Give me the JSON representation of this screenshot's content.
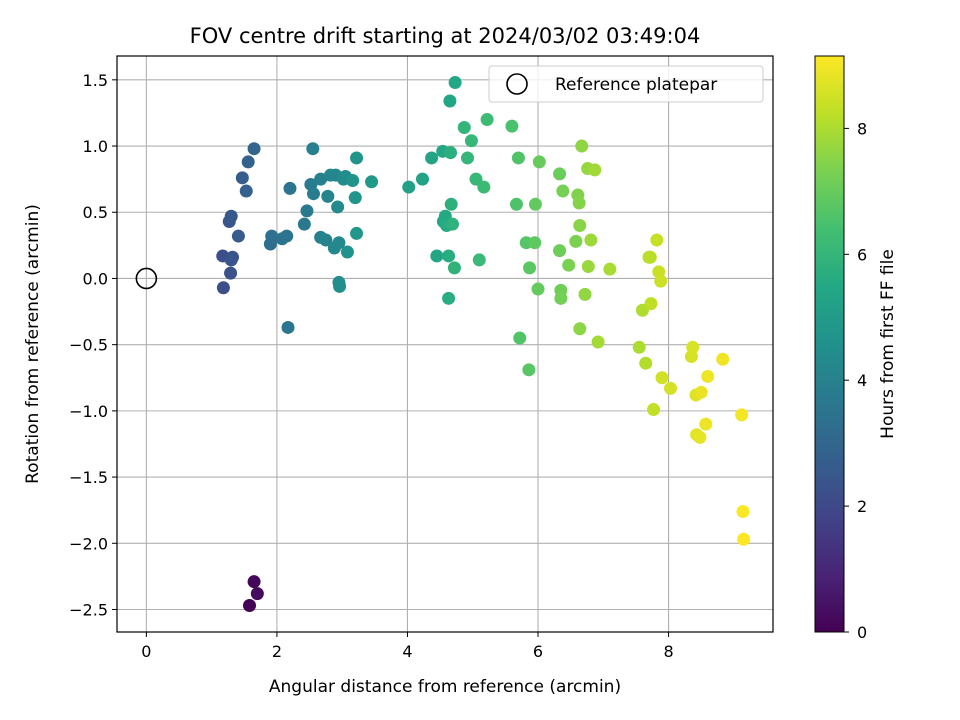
{
  "chart_data": {
    "type": "scatter",
    "title": "FOV centre drift starting at 2024/03/02 03:49:04",
    "xlabel": "Angular distance from reference (arcmin)",
    "ylabel": "Rotation from reference (arcmin)",
    "xlim": [
      -0.45,
      9.6
    ],
    "ylim": [
      -2.67,
      1.68
    ],
    "xticks": [
      0,
      2,
      4,
      6,
      8
    ],
    "yticks": [
      1.5,
      1.0,
      0.5,
      0.0,
      -0.5,
      -1.0,
      -1.5,
      -2.0,
      -2.5
    ],
    "xtick_labels": [
      "0",
      "2",
      "4",
      "6",
      "8"
    ],
    "ytick_labels": [
      "1.5",
      "1.0",
      "0.5",
      "0.0",
      "−0.5",
      "−1.0",
      "−1.5",
      "−2.0",
      "−2.5"
    ],
    "grid": true,
    "legend": {
      "placement": "top-right",
      "entries": [
        "Reference platepar"
      ]
    },
    "reference_point": {
      "x": 0,
      "y": 0
    },
    "colorbar": {
      "label": "Hours from first FF file",
      "colormap": "viridis",
      "range": [
        0,
        9.15
      ],
      "ticks": [
        0,
        2,
        4,
        6,
        8
      ],
      "tick_labels": [
        "0",
        "2",
        "4",
        "6",
        "8"
      ]
    },
    "points": [
      {
        "x": 1.58,
        "y": -2.47,
        "h": 0.05
      },
      {
        "x": 1.65,
        "y": -2.29,
        "h": 0.15
      },
      {
        "x": 1.7,
        "y": -2.38,
        "h": 0.25
      },
      {
        "x": 1.18,
        "y": -0.07,
        "h": 2.2
      },
      {
        "x": 1.17,
        "y": 0.17,
        "h": 2.25
      },
      {
        "x": 1.29,
        "y": 0.04,
        "h": 2.3
      },
      {
        "x": 1.32,
        "y": 0.16,
        "h": 2.35
      },
      {
        "x": 1.3,
        "y": 0.14,
        "h": 2.4
      },
      {
        "x": 1.27,
        "y": 0.43,
        "h": 2.45
      },
      {
        "x": 1.3,
        "y": 0.47,
        "h": 2.5
      },
      {
        "x": 1.41,
        "y": 0.32,
        "h": 2.6
      },
      {
        "x": 1.47,
        "y": 0.76,
        "h": 2.7
      },
      {
        "x": 1.53,
        "y": 0.66,
        "h": 2.8
      },
      {
        "x": 1.56,
        "y": 0.88,
        "h": 2.9
      },
      {
        "x": 1.65,
        "y": 0.98,
        "h": 3.0
      },
      {
        "x": 1.9,
        "y": 0.26,
        "h": 3.3
      },
      {
        "x": 1.92,
        "y": 0.32,
        "h": 3.35
      },
      {
        "x": 2.08,
        "y": 0.3,
        "h": 3.45
      },
      {
        "x": 2.15,
        "y": 0.32,
        "h": 3.5
      },
      {
        "x": 2.2,
        "y": 0.68,
        "h": 3.6
      },
      {
        "x": 2.17,
        "y": -0.37,
        "h": 3.55
      },
      {
        "x": 2.42,
        "y": 0.41,
        "h": 3.7
      },
      {
        "x": 2.46,
        "y": 0.51,
        "h": 3.75
      },
      {
        "x": 2.52,
        "y": 0.71,
        "h": 3.8
      },
      {
        "x": 2.56,
        "y": 0.64,
        "h": 3.85
      },
      {
        "x": 2.55,
        "y": 0.98,
        "h": 3.9
      },
      {
        "x": 2.67,
        "y": 0.75,
        "h": 3.95
      },
      {
        "x": 2.67,
        "y": 0.31,
        "h": 4.0
      },
      {
        "x": 2.75,
        "y": 0.29,
        "h": 4.05
      },
      {
        "x": 2.78,
        "y": 0.62,
        "h": 4.1
      },
      {
        "x": 2.82,
        "y": 0.78,
        "h": 4.15
      },
      {
        "x": 2.9,
        "y": 0.78,
        "h": 4.2
      },
      {
        "x": 2.88,
        "y": 0.23,
        "h": 4.25
      },
      {
        "x": 2.95,
        "y": 0.27,
        "h": 4.3
      },
      {
        "x": 2.93,
        "y": 0.54,
        "h": 4.35
      },
      {
        "x": 3.02,
        "y": 0.75,
        "h": 4.4
      },
      {
        "x": 3.05,
        "y": 0.77,
        "h": 4.45
      },
      {
        "x": 2.95,
        "y": -0.03,
        "h": 4.5
      },
      {
        "x": 2.96,
        "y": -0.06,
        "h": 4.55
      },
      {
        "x": 3.08,
        "y": 0.2,
        "h": 4.6
      },
      {
        "x": 3.16,
        "y": 0.74,
        "h": 4.65
      },
      {
        "x": 3.2,
        "y": 0.61,
        "h": 4.7
      },
      {
        "x": 3.22,
        "y": 0.91,
        "h": 4.75
      },
      {
        "x": 3.22,
        "y": 0.34,
        "h": 4.8
      },
      {
        "x": 3.45,
        "y": 0.73,
        "h": 4.9
      },
      {
        "x": 4.02,
        "y": 0.69,
        "h": 5.2
      },
      {
        "x": 4.23,
        "y": 0.75,
        "h": 5.3
      },
      {
        "x": 4.37,
        "y": 0.91,
        "h": 5.35
      },
      {
        "x": 4.45,
        "y": 0.17,
        "h": 5.4
      },
      {
        "x": 4.54,
        "y": 0.96,
        "h": 5.45
      },
      {
        "x": 4.55,
        "y": 0.43,
        "h": 5.5
      },
      {
        "x": 4.58,
        "y": 0.47,
        "h": 5.55
      },
      {
        "x": 4.6,
        "y": 0.4,
        "h": 5.6
      },
      {
        "x": 4.63,
        "y": 0.17,
        "h": 5.65
      },
      {
        "x": 4.63,
        "y": -0.15,
        "h": 5.7
      },
      {
        "x": 4.66,
        "y": 0.95,
        "h": 5.75
      },
      {
        "x": 4.67,
        "y": 0.56,
        "h": 5.8
      },
      {
        "x": 4.69,
        "y": 0.41,
        "h": 5.85
      },
      {
        "x": 4.65,
        "y": 1.34,
        "h": 5.45
      },
      {
        "x": 4.73,
        "y": 1.48,
        "h": 5.5
      },
      {
        "x": 4.72,
        "y": 0.08,
        "h": 5.9
      },
      {
        "x": 4.87,
        "y": 1.14,
        "h": 5.95
      },
      {
        "x": 4.92,
        "y": 0.91,
        "h": 6.0
      },
      {
        "x": 4.98,
        "y": 1.04,
        "h": 6.05
      },
      {
        "x": 5.05,
        "y": 0.75,
        "h": 6.1
      },
      {
        "x": 5.1,
        "y": 0.14,
        "h": 6.15
      },
      {
        "x": 5.17,
        "y": 0.69,
        "h": 6.2
      },
      {
        "x": 5.22,
        "y": 1.2,
        "h": 6.25
      },
      {
        "x": 5.6,
        "y": 1.15,
        "h": 6.5
      },
      {
        "x": 5.67,
        "y": 0.56,
        "h": 6.55
      },
      {
        "x": 5.7,
        "y": 0.91,
        "h": 6.6
      },
      {
        "x": 5.72,
        "y": -0.45,
        "h": 6.65
      },
      {
        "x": 5.82,
        "y": 0.27,
        "h": 6.7
      },
      {
        "x": 5.86,
        "y": -0.69,
        "h": 6.75
      },
      {
        "x": 5.87,
        "y": 0.08,
        "h": 6.8
      },
      {
        "x": 5.95,
        "y": 0.27,
        "h": 6.85
      },
      {
        "x": 5.96,
        "y": 0.56,
        "h": 6.9
      },
      {
        "x": 6.0,
        "y": -0.08,
        "h": 6.95
      },
      {
        "x": 6.02,
        "y": 0.88,
        "h": 7.0
      },
      {
        "x": 6.33,
        "y": 0.79,
        "h": 7.05
      },
      {
        "x": 6.33,
        "y": 0.21,
        "h": 7.1
      },
      {
        "x": 6.35,
        "y": -0.09,
        "h": 7.15
      },
      {
        "x": 6.35,
        "y": -0.15,
        "h": 7.2
      },
      {
        "x": 6.38,
        "y": 0.66,
        "h": 7.25
      },
      {
        "x": 6.47,
        "y": 0.1,
        "h": 7.3
      },
      {
        "x": 6.58,
        "y": 0.28,
        "h": 7.35
      },
      {
        "x": 6.61,
        "y": 0.63,
        "h": 7.4
      },
      {
        "x": 6.63,
        "y": 0.57,
        "h": 7.45
      },
      {
        "x": 6.64,
        "y": 0.4,
        "h": 7.5
      },
      {
        "x": 6.64,
        "y": -0.38,
        "h": 7.55
      },
      {
        "x": 6.67,
        "y": 1.0,
        "h": 7.6
      },
      {
        "x": 6.72,
        "y": -0.12,
        "h": 7.65
      },
      {
        "x": 6.76,
        "y": 0.83,
        "h": 7.7
      },
      {
        "x": 6.77,
        "y": 0.09,
        "h": 7.75
      },
      {
        "x": 6.81,
        "y": 0.29,
        "h": 7.8
      },
      {
        "x": 6.87,
        "y": 0.82,
        "h": 7.85
      },
      {
        "x": 6.92,
        "y": -0.48,
        "h": 7.9
      },
      {
        "x": 7.1,
        "y": 0.07,
        "h": 7.95
      },
      {
        "x": 7.55,
        "y": -0.52,
        "h": 8.0
      },
      {
        "x": 7.6,
        "y": -0.24,
        "h": 8.05
      },
      {
        "x": 7.65,
        "y": -0.64,
        "h": 8.1
      },
      {
        "x": 7.7,
        "y": 0.16,
        "h": 8.15
      },
      {
        "x": 7.72,
        "y": 0.16,
        "h": 8.2
      },
      {
        "x": 7.73,
        "y": -0.19,
        "h": 8.25
      },
      {
        "x": 7.77,
        "y": -0.99,
        "h": 8.3
      },
      {
        "x": 7.82,
        "y": 0.29,
        "h": 8.35
      },
      {
        "x": 7.85,
        "y": 0.05,
        "h": 8.4
      },
      {
        "x": 7.88,
        "y": -0.02,
        "h": 8.45
      },
      {
        "x": 7.9,
        "y": -0.75,
        "h": 8.5
      },
      {
        "x": 8.03,
        "y": -0.83,
        "h": 8.55
      },
      {
        "x": 8.35,
        "y": -0.59,
        "h": 8.6
      },
      {
        "x": 8.37,
        "y": -0.52,
        "h": 8.62
      },
      {
        "x": 8.42,
        "y": -0.88,
        "h": 8.7
      },
      {
        "x": 8.43,
        "y": -1.18,
        "h": 8.75
      },
      {
        "x": 8.48,
        "y": -1.2,
        "h": 8.8
      },
      {
        "x": 8.5,
        "y": -0.86,
        "h": 8.85
      },
      {
        "x": 8.57,
        "y": -1.1,
        "h": 8.9
      },
      {
        "x": 8.6,
        "y": -0.74,
        "h": 8.92
      },
      {
        "x": 8.83,
        "y": -0.61,
        "h": 8.95
      },
      {
        "x": 9.12,
        "y": -1.03,
        "h": 9.0
      },
      {
        "x": 9.14,
        "y": -1.76,
        "h": 9.1
      },
      {
        "x": 9.15,
        "y": -1.97,
        "h": 9.15
      }
    ]
  }
}
